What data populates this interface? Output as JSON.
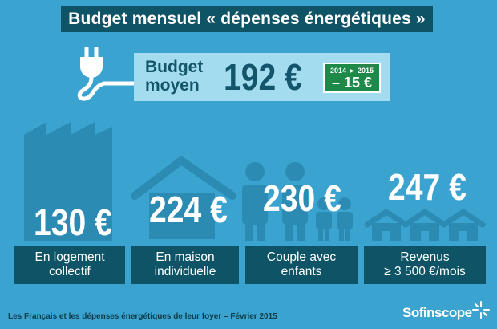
{
  "title": "Budget mensuel « dépenses énergétiques »",
  "budget": {
    "label_line1": "Budget",
    "label_line2": "moyen",
    "value": "192 €",
    "change_years": "2014 ► 2015",
    "change_value": "– 15 €"
  },
  "categories": [
    {
      "value": "130 €",
      "label_line1": "En logement",
      "label_line2": "collectif",
      "icon": "apartment-building-icon"
    },
    {
      "value": "224 €",
      "label_line1": "En maison",
      "label_line2": "individuelle",
      "icon": "house-icon"
    },
    {
      "value": "230 €",
      "label_line1": "Couple avec",
      "label_line2": "enfants",
      "icon": "family-icon"
    },
    {
      "value": "247 €",
      "label_line1": "Revenus",
      "label_line2": "≥ 3 500 €/mois",
      "icon": "row-houses-icon"
    }
  ],
  "footnote": "Les Français et les dépenses énergétiques de leur foyer – Février 2015",
  "brand": "Sofinscope",
  "colors": {
    "background": "#3aa3cf",
    "dark": "#0f5466",
    "silhouette": "#2b8bb3",
    "green": "#1d8a4a",
    "light": "#a4dcef"
  }
}
